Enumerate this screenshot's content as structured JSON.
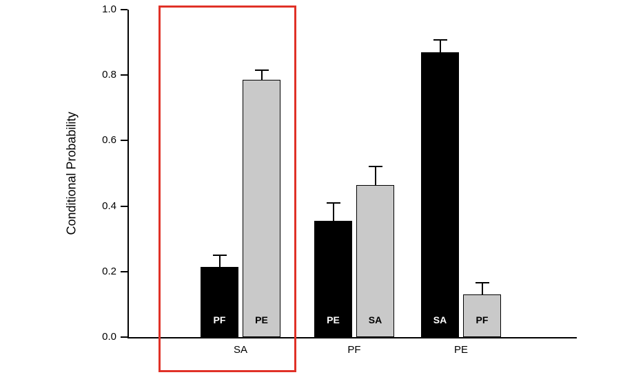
{
  "chart_data": {
    "type": "bar",
    "title": "",
    "xlabel": "",
    "ylabel": "Conditional Probability",
    "ylim": [
      0,
      1.0
    ],
    "yticks": [
      0.0,
      0.2,
      0.4,
      0.6,
      0.8,
      1.0
    ],
    "grid": false,
    "legend": "none (labels printed inside bars)",
    "groups": [
      {
        "category": "SA",
        "highlighted": true,
        "bars": [
          {
            "label": "PF",
            "color": "black",
            "value": 0.215,
            "error": 0.035
          },
          {
            "label": "PE",
            "color": "gray",
            "value": 0.785,
            "error": 0.03
          }
        ]
      },
      {
        "category": "PF",
        "highlighted": false,
        "bars": [
          {
            "label": "PE",
            "color": "black",
            "value": 0.355,
            "error": 0.055
          },
          {
            "label": "SA",
            "color": "gray",
            "value": 0.465,
            "error": 0.055
          }
        ]
      },
      {
        "category": "PE",
        "highlighted": false,
        "bars": [
          {
            "label": "SA",
            "color": "black",
            "value": 0.87,
            "error": 0.038
          },
          {
            "label": "PF",
            "color": "gray",
            "value": 0.13,
            "error": 0.035
          }
        ]
      }
    ],
    "colors": {
      "black_bar": "#000000",
      "gray_bar": "#c9c9c9",
      "axis": "#000000",
      "highlight_box": "#e03127"
    }
  }
}
